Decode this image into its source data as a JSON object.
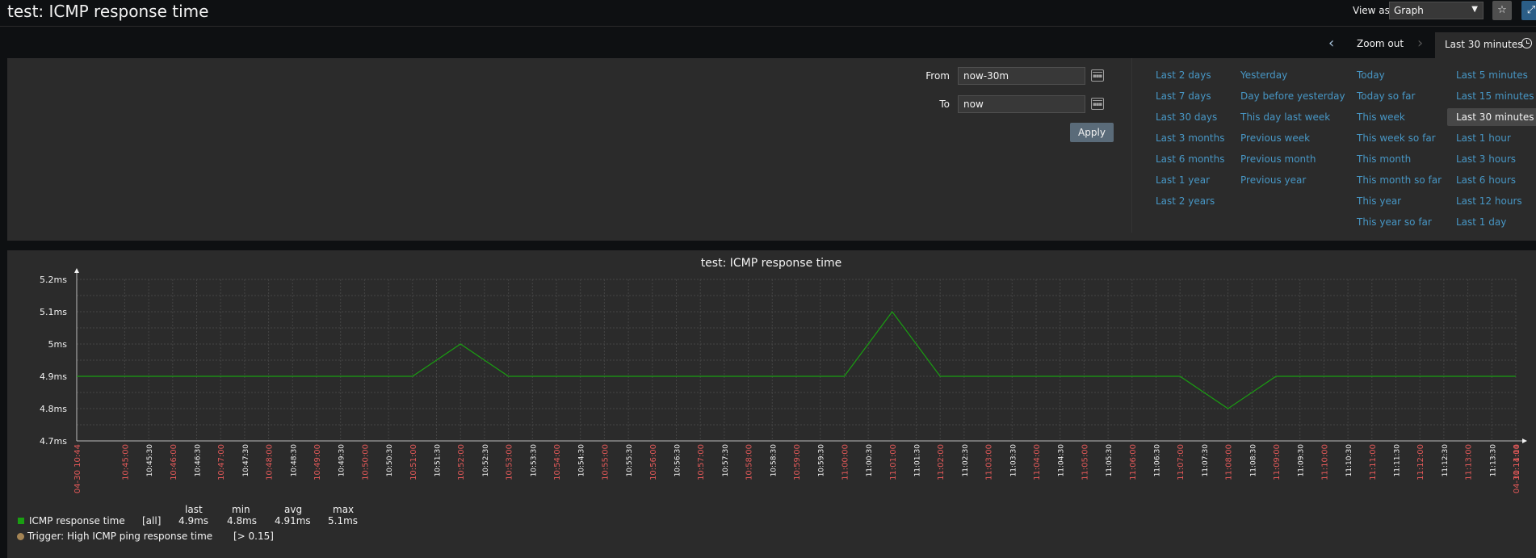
{
  "header": {
    "title": "test: ICMP response time",
    "view_as_label": "View as",
    "view_as_value": "Graph"
  },
  "timeline": {
    "zoom_out": "Zoom out",
    "active_period": "Last 30 minutes"
  },
  "filter": {
    "from_label": "From",
    "from_value": "now-30m",
    "to_label": "To",
    "to_value": "now",
    "apply_label": "Apply",
    "quick_columns": [
      [
        "Last 2 days",
        "Last 7 days",
        "Last 30 days",
        "Last 3 months",
        "Last 6 months",
        "Last 1 year",
        "Last 2 years"
      ],
      [
        "Yesterday",
        "Day before yesterday",
        "This day last week",
        "Previous week",
        "Previous month",
        "Previous year"
      ],
      [
        "Today",
        "Today so far",
        "This week",
        "This week so far",
        "This month",
        "This month so far",
        "This year",
        "This year so far"
      ],
      [
        "Last 5 minutes",
        "Last 15 minutes",
        "Last 30 minutes",
        "Last 1 hour",
        "Last 3 hours",
        "Last 6 hours",
        "Last 12 hours",
        "Last 1 day"
      ]
    ],
    "selected": "Last 30 minutes"
  },
  "chart_data": {
    "type": "line",
    "title": "test: ICMP response time",
    "y_ticks": [
      "4.7ms",
      "4.8ms",
      "4.9ms",
      "5ms",
      "5.1ms",
      "5.2ms"
    ],
    "ylim": [
      4.7,
      5.2
    ],
    "x_start_label": "04-30 10:44",
    "x_end_label": "04-30 11:14",
    "x_tick_labels": [
      "10:45:00",
      "10:45:30",
      "10:46:00",
      "10:46:30",
      "10:47:00",
      "10:47:30",
      "10:48:00",
      "10:48:30",
      "10:49:00",
      "10:49:30",
      "10:50:00",
      "10:50:30",
      "10:51:00",
      "10:51:30",
      "10:52:00",
      "10:52:30",
      "10:53:00",
      "10:53:30",
      "10:54:00",
      "10:54:30",
      "10:55:00",
      "10:55:30",
      "10:56:00",
      "10:56:30",
      "10:57:00",
      "10:57:30",
      "10:58:00",
      "10:58:30",
      "10:59:00",
      "10:59:30",
      "11:00:00",
      "11:00:30",
      "11:01:00",
      "11:01:30",
      "11:02:00",
      "11:02:30",
      "11:03:00",
      "11:03:30",
      "11:04:00",
      "11:04:30",
      "11:05:00",
      "11:05:30",
      "11:06:00",
      "11:06:30",
      "11:07:00",
      "11:07:30",
      "11:08:00",
      "11:08:30",
      "11:09:00",
      "11:09:30",
      "11:10:00",
      "11:10:30",
      "11:11:00",
      "11:11:30",
      "11:12:00",
      "11:12:30",
      "11:13:00",
      "11:13:30",
      "11:14:00"
    ],
    "series": [
      {
        "name": "ICMP response time",
        "color": "#1a9e12",
        "points": [
          [
            "10:44:00",
            4.9
          ],
          [
            "10:51:00",
            4.9
          ],
          [
            "10:52:00",
            5.0
          ],
          [
            "10:53:00",
            4.9
          ],
          [
            "11:00:00",
            4.9
          ],
          [
            "11:01:00",
            5.1
          ],
          [
            "11:02:00",
            4.9
          ],
          [
            "11:07:00",
            4.9
          ],
          [
            "11:08:00",
            4.8
          ],
          [
            "11:09:00",
            4.9
          ],
          [
            "11:14:00",
            4.9
          ]
        ]
      }
    ],
    "grid": true
  },
  "legend": {
    "headers": [
      "last",
      "min",
      "avg",
      "max"
    ],
    "item_name": "ICMP response time",
    "item_func": "[all]",
    "item_values": [
      "4.9ms",
      "4.8ms",
      "4.91ms",
      "5.1ms"
    ],
    "item_color": "#1a9e12",
    "trigger_text": "Trigger: High ICMP ping response time",
    "trigger_value": "[> 0.15]",
    "trigger_color": "#a48454"
  }
}
